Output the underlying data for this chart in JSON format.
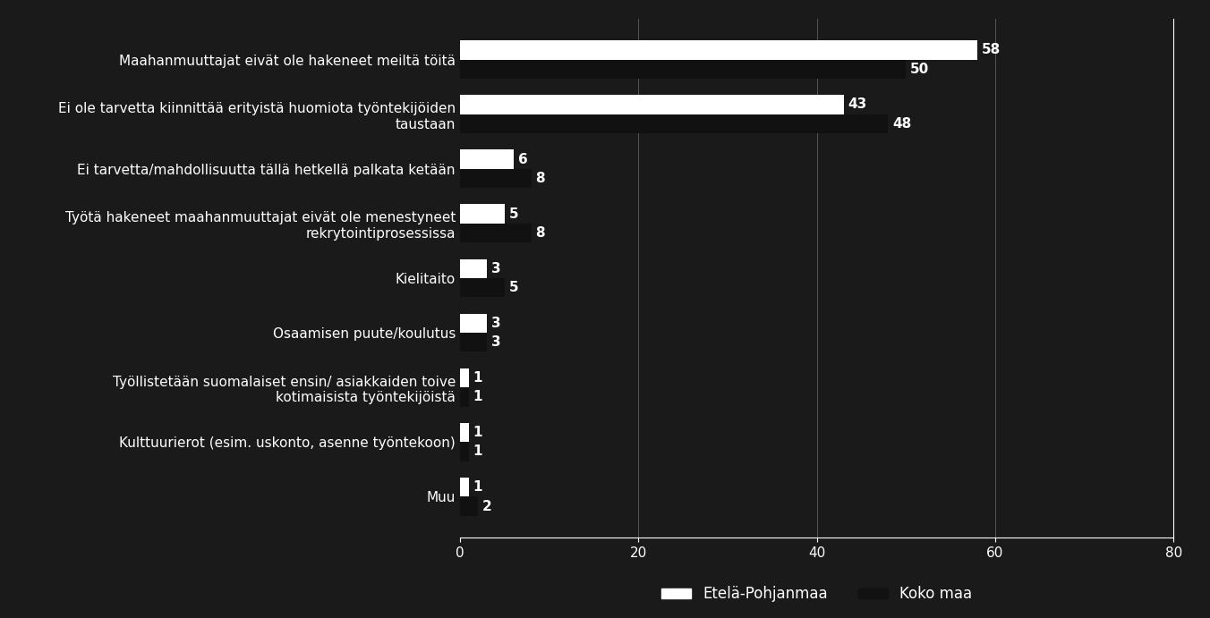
{
  "categories": [
    "Maahanmuuttajat eivät ole hakeneet meiltä töitä",
    "Ei ole tarvetta kiinnittää erityistä huomiota työntekijöiden\ntaustaan",
    "Ei tarvetta/mahdollisuutta tällä hetkellä palkata ketään",
    "Työtä hakeneet maahanmuuttajat eivät ole menestyneet\nrekrytointiprosessissa",
    "Kielitaito",
    "Osaamisen puute/koulutus",
    "Työllistetään suomalaiset ensin/ asiakkaiden toive\nkotimaisista työntekijöistä",
    "Kulttuurierot (esim. uskonto, asenne työntekoon)",
    "Muu"
  ],
  "etela_pohjanmaa": [
    58,
    43,
    6,
    5,
    3,
    3,
    1,
    1,
    1
  ],
  "koko_maa": [
    50,
    48,
    8,
    8,
    5,
    3,
    1,
    1,
    2
  ],
  "etela_color": "#ffffff",
  "koko_color": "#111111",
  "background_color": "#1a1a1a",
  "text_color": "#ffffff",
  "bar_height": 0.35,
  "xlim": [
    0,
    80
  ],
  "xticks": [
    0,
    20,
    40,
    60,
    80
  ],
  "legend_labels": [
    "Etelä-Pohjanmaa",
    "Koko maa"
  ],
  "label_fontsize": 11,
  "tick_fontsize": 11,
  "legend_fontsize": 12,
  "value_fontsize": 11
}
